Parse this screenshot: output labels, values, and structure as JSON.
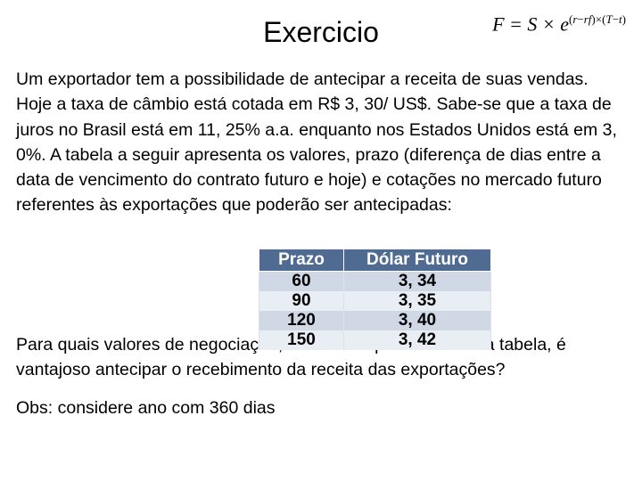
{
  "title": "Exercicio",
  "formula": {
    "lhs": "F",
    "eq": " = ",
    "S": "S",
    "times1": " × ",
    "e": "e",
    "exp_open": "(",
    "r": "r",
    "minus": "−",
    "rf": "rf",
    "exp_close": ")",
    "times2": "×",
    "T_open": "(",
    "T": "T",
    "minus2": "−",
    "t": "t",
    "T_close": ")"
  },
  "paragraph1": "Um exportador tem a possibilidade de antecipar a receita de suas vendas. Hoje a taxa de câmbio está cotada em R$ 3, 30/ US$. Sabe-se que a taxa de juros no Brasil está em 11, 25% a.a. enquanto nos Estados Unidos está em 3, 0%. A tabela a seguir apresenta os valores, prazo (diferença de dias entre a data de vencimento do contrato futuro e hoje) e cotações no mercado futuro referentes às exportações que poderão ser antecipadas:",
  "table": {
    "type": "table",
    "header_bg": "#4f6b91",
    "header_fg": "#ffffff",
    "row_band_a": "#d0d8e6",
    "row_band_b": "#e9edf4",
    "columns": [
      "Prazo",
      "Dólar Futuro"
    ],
    "rows": [
      [
        "60",
        "3, 34"
      ],
      [
        "90",
        "3, 35"
      ],
      [
        "120",
        "3, 40"
      ],
      [
        "150",
        "3, 42"
      ]
    ]
  },
  "question": "Para quais valores de negociação, dentre os apresentados na tabela, é vantajoso antecipar o recebimento da receita das exportações?",
  "obs": "Obs: considere ano com 360 dias"
}
